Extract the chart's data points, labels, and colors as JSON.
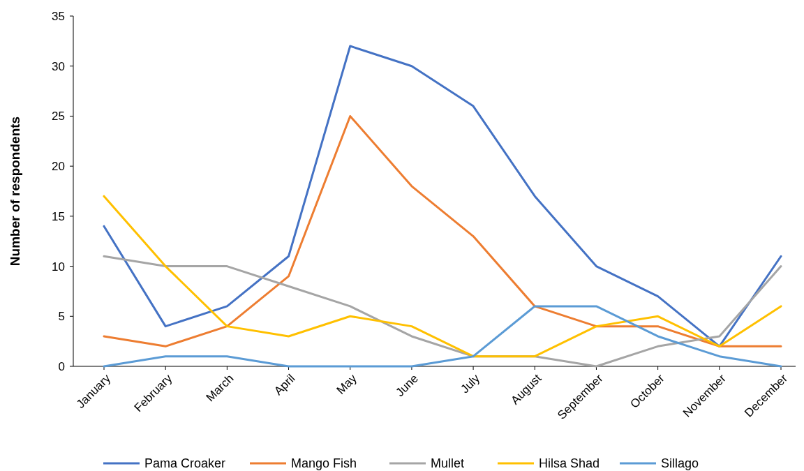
{
  "chart_data": {
    "type": "line",
    "ylabel": "Number of respondents",
    "categories": [
      "January",
      "February",
      "March",
      "April",
      "May",
      "June",
      "July",
      "August",
      "September",
      "October",
      "November",
      "December"
    ],
    "series": [
      {
        "name": "Pama Croaker",
        "color": "#4472c4",
        "values": [
          14,
          4,
          6,
          11,
          32,
          30,
          26,
          17,
          10,
          7,
          2,
          11
        ]
      },
      {
        "name": "Mango Fish",
        "color": "#ed7d31",
        "values": [
          3,
          2,
          4,
          9,
          25,
          18,
          13,
          6,
          4,
          4,
          2,
          2
        ]
      },
      {
        "name": "Mullet",
        "color": "#a5a5a5",
        "values": [
          11,
          10,
          10,
          8,
          6,
          3,
          1,
          1,
          0,
          2,
          3,
          10
        ]
      },
      {
        "name": "Hilsa Shad",
        "color": "#ffc000",
        "values": [
          17,
          10,
          4,
          3,
          5,
          4,
          1,
          1,
          4,
          5,
          2,
          6
        ]
      },
      {
        "name": "Sillago",
        "color": "#5b9bd5",
        "values": [
          0,
          1,
          1,
          0,
          0,
          0,
          1,
          6,
          6,
          3,
          1,
          0
        ]
      }
    ],
    "ylim": [
      0,
      35
    ],
    "yticks": [
      0,
      5,
      10,
      15,
      20,
      25,
      30,
      35
    ],
    "grid": false,
    "legend": "bottom",
    "marker": "none",
    "line_style": "solid"
  }
}
